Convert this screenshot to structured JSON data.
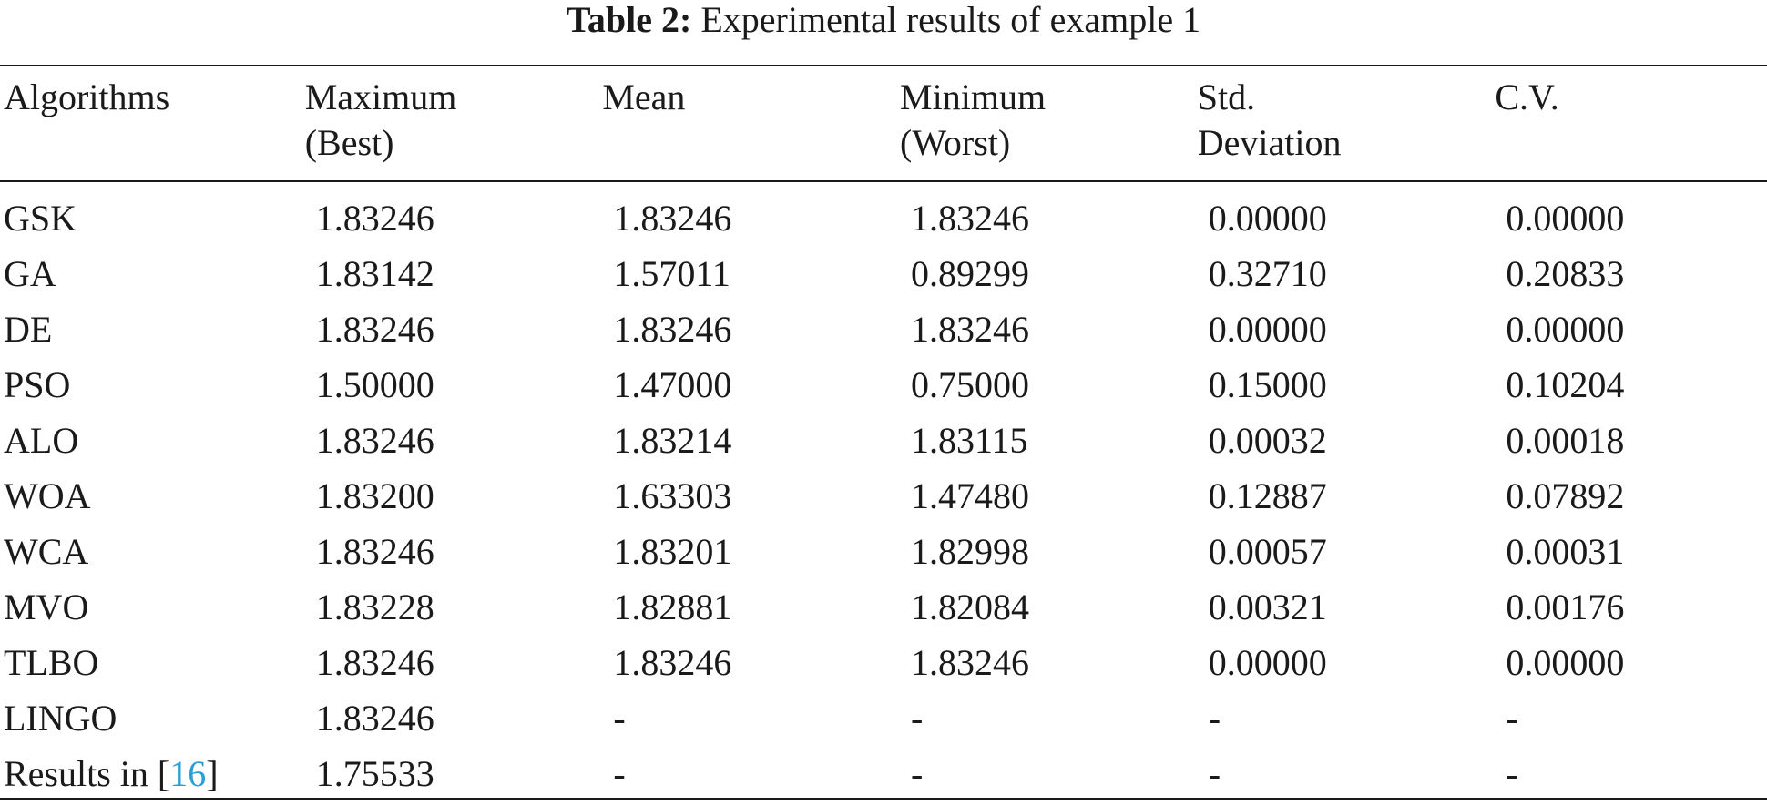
{
  "caption": {
    "label": "Table 2:",
    "text": "Experimental results of example 1"
  },
  "table": {
    "headers": [
      {
        "line1": "Algorithms",
        "line2": ""
      },
      {
        "line1": "Maximum",
        "line2": "(Best)"
      },
      {
        "line1": "Mean",
        "line2": ""
      },
      {
        "line1": "Minimum",
        "line2": "(Worst)"
      },
      {
        "line1": "Std.",
        "line2": "Deviation"
      },
      {
        "line1": "C.V.",
        "line2": ""
      }
    ],
    "rows": [
      {
        "algorithm": "GSK",
        "maximum": "1.83246",
        "mean": "1.83246",
        "minimum": "1.83246",
        "std": "0.00000",
        "cv": "0.00000"
      },
      {
        "algorithm": "GA",
        "maximum": "1.83142",
        "mean": "1.57011",
        "minimum": "0.89299",
        "std": "0.32710",
        "cv": "0.20833"
      },
      {
        "algorithm": "DE",
        "maximum": "1.83246",
        "mean": "1.83246",
        "minimum": "1.83246",
        "std": "0.00000",
        "cv": "0.00000"
      },
      {
        "algorithm": "PSO",
        "maximum": "1.50000",
        "mean": "1.47000",
        "minimum": "0.75000",
        "std": "0.15000",
        "cv": "0.10204"
      },
      {
        "algorithm": "ALO",
        "maximum": "1.83246",
        "mean": "1.83214",
        "minimum": "1.83115",
        "std": "0.00032",
        "cv": "0.00018"
      },
      {
        "algorithm": "WOA",
        "maximum": "1.83200",
        "mean": "1.63303",
        "minimum": "1.47480",
        "std": "0.12887",
        "cv": "0.07892"
      },
      {
        "algorithm": "WCA",
        "maximum": "1.83246",
        "mean": "1.83201",
        "minimum": "1.82998",
        "std": "0.00057",
        "cv": "0.00031"
      },
      {
        "algorithm": "MVO",
        "maximum": "1.83228",
        "mean": "1.82881",
        "minimum": "1.82084",
        "std": "0.00321",
        "cv": "0.00176"
      },
      {
        "algorithm": "TLBO",
        "maximum": "1.83246",
        "mean": "1.83246",
        "minimum": "1.83246",
        "std": "0.00000",
        "cv": "0.00000"
      },
      {
        "algorithm": "LINGO",
        "maximum": "1.83246",
        "mean": "-",
        "minimum": "-",
        "std": "-",
        "cv": "-"
      },
      {
        "algorithm": "Results in [16]",
        "algorithm_prefix": "Results in [",
        "algorithm_ref": "16",
        "algorithm_suffix": "]",
        "maximum": "1.75533",
        "mean": "-",
        "minimum": "-",
        "std": "-",
        "cv": "-"
      }
    ]
  },
  "colors": {
    "text": "#1a1a1a",
    "link": "#2a9fd6"
  }
}
